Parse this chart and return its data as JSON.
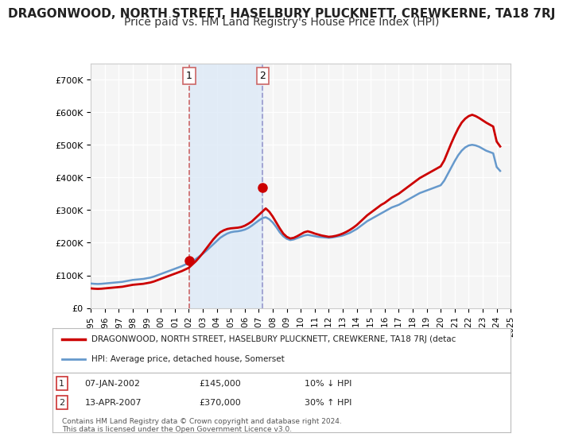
{
  "title": "DRAGONWOOD, NORTH STREET, HASELBURY PLUCKNETT, CREWKERNE, TA18 7RJ",
  "subtitle": "Price paid vs. HM Land Registry's House Price Index (HPI)",
  "title_fontsize": 11,
  "subtitle_fontsize": 10,
  "bg_color": "#ffffff",
  "plot_bg_color": "#f5f5f5",
  "grid_color": "#ffffff",
  "red_line_color": "#cc0000",
  "blue_line_color": "#6699cc",
  "marker1_color": "#cc0000",
  "marker2_color": "#cc0000",
  "vertical_band_color": "#dce9f7",
  "vertical_line1_color": "#cc6666",
  "vertical_line2_color": "#9999cc",
  "sale1_year": 2002.03,
  "sale2_year": 2007.28,
  "sale1_price": 145000,
  "sale2_price": 370000,
  "ylim_max": 750000,
  "legend_red_label": "DRAGONWOOD, NORTH STREET, HASELBURY PLUCKNETT, CREWKERNE, TA18 7RJ (detac",
  "legend_blue_label": "HPI: Average price, detached house, Somerset",
  "table_row1": "1    07-JAN-2002    £145,000    10% ↓ HPI",
  "table_row2": "2    13-APR-2007    £370,000    30% ↑ HPI",
  "footer": "Contains HM Land Registry data © Crown copyright and database right 2024.\nThis data is licensed under the Open Government Licence v3.0.",
  "hpi_years": [
    1995,
    1995.25,
    1995.5,
    1995.75,
    1996,
    1996.25,
    1996.5,
    1996.75,
    1997,
    1997.25,
    1997.5,
    1997.75,
    1998,
    1998.25,
    1998.5,
    1998.75,
    1999,
    1999.25,
    1999.5,
    1999.75,
    2000,
    2000.25,
    2000.5,
    2000.75,
    2001,
    2001.25,
    2001.5,
    2001.75,
    2002,
    2002.25,
    2002.5,
    2002.75,
    2003,
    2003.25,
    2003.5,
    2003.75,
    2004,
    2004.25,
    2004.5,
    2004.75,
    2005,
    2005.25,
    2005.5,
    2005.75,
    2006,
    2006.25,
    2006.5,
    2006.75,
    2007,
    2007.25,
    2007.5,
    2007.75,
    2008,
    2008.25,
    2008.5,
    2008.75,
    2009,
    2009.25,
    2009.5,
    2009.75,
    2010,
    2010.25,
    2010.5,
    2010.75,
    2011,
    2011.25,
    2011.5,
    2011.75,
    2012,
    2012.25,
    2012.5,
    2012.75,
    2013,
    2013.25,
    2013.5,
    2013.75,
    2014,
    2014.25,
    2014.5,
    2014.75,
    2015,
    2015.25,
    2015.5,
    2015.75,
    2016,
    2016.25,
    2016.5,
    2016.75,
    2017,
    2017.25,
    2017.5,
    2017.75,
    2018,
    2018.25,
    2018.5,
    2018.75,
    2019,
    2019.25,
    2019.5,
    2019.75,
    2020,
    2020.25,
    2020.5,
    2020.75,
    2021,
    2021.25,
    2021.5,
    2021.75,
    2022,
    2022.25,
    2022.5,
    2022.75,
    2023,
    2023.25,
    2023.5,
    2023.75,
    2024,
    2024.25
  ],
  "hpi_values": [
    75000,
    74000,
    73500,
    74000,
    75000,
    76000,
    77000,
    78000,
    79000,
    80000,
    82000,
    84000,
    86000,
    87000,
    88000,
    89000,
    91000,
    93000,
    96000,
    100000,
    104000,
    108000,
    112000,
    116000,
    120000,
    124000,
    128000,
    133000,
    138000,
    143000,
    150000,
    158000,
    166000,
    175000,
    185000,
    195000,
    205000,
    215000,
    222000,
    228000,
    232000,
    234000,
    235000,
    237000,
    240000,
    245000,
    252000,
    260000,
    268000,
    275000,
    278000,
    272000,
    262000,
    248000,
    232000,
    220000,
    212000,
    208000,
    210000,
    214000,
    218000,
    222000,
    224000,
    222000,
    220000,
    218000,
    217000,
    216000,
    215000,
    216000,
    218000,
    220000,
    222000,
    226000,
    230000,
    236000,
    242000,
    250000,
    258000,
    266000,
    272000,
    278000,
    284000,
    290000,
    296000,
    302000,
    308000,
    312000,
    316000,
    322000,
    328000,
    334000,
    340000,
    346000,
    352000,
    356000,
    360000,
    364000,
    368000,
    372000,
    376000,
    390000,
    410000,
    430000,
    450000,
    468000,
    482000,
    492000,
    498000,
    500000,
    498000,
    494000,
    488000,
    482000,
    478000,
    474000,
    432000,
    420000
  ],
  "red_years": [
    1995,
    1995.25,
    1995.5,
    1995.75,
    1996,
    1996.25,
    1996.5,
    1996.75,
    1997,
    1997.25,
    1997.5,
    1997.75,
    1998,
    1998.25,
    1998.5,
    1998.75,
    1999,
    1999.25,
    1999.5,
    1999.75,
    2000,
    2000.25,
    2000.5,
    2000.75,
    2001,
    2001.25,
    2001.5,
    2001.75,
    2002,
    2002.25,
    2002.5,
    2002.75,
    2003,
    2003.25,
    2003.5,
    2003.75,
    2004,
    2004.25,
    2004.5,
    2004.75,
    2005,
    2005.25,
    2005.5,
    2005.75,
    2006,
    2006.25,
    2006.5,
    2006.75,
    2007,
    2007.25,
    2007.5,
    2007.75,
    2008,
    2008.25,
    2008.5,
    2008.75,
    2009,
    2009.25,
    2009.5,
    2009.75,
    2010,
    2010.25,
    2010.5,
    2010.75,
    2011,
    2011.25,
    2011.5,
    2011.75,
    2012,
    2012.25,
    2012.5,
    2012.75,
    2013,
    2013.25,
    2013.5,
    2013.75,
    2014,
    2014.25,
    2014.5,
    2014.75,
    2015,
    2015.25,
    2015.5,
    2015.75,
    2016,
    2016.25,
    2016.5,
    2016.75,
    2017,
    2017.25,
    2017.5,
    2017.75,
    2018,
    2018.25,
    2018.5,
    2018.75,
    2019,
    2019.25,
    2019.5,
    2019.75,
    2020,
    2020.25,
    2020.5,
    2020.75,
    2021,
    2021.25,
    2021.5,
    2021.75,
    2022,
    2022.25,
    2022.5,
    2022.75,
    2023,
    2023.25,
    2023.5,
    2023.75,
    2024,
    2024.25
  ],
  "red_values": [
    60000,
    59000,
    58500,
    59000,
    60000,
    61000,
    62000,
    63000,
    64000,
    65000,
    67000,
    69000,
    71000,
    72000,
    73000,
    74000,
    76000,
    78000,
    81000,
    85000,
    89000,
    93000,
    97000,
    101000,
    105000,
    109000,
    113000,
    118000,
    123000,
    133000,
    143000,
    155000,
    168000,
    182000,
    196000,
    210000,
    222000,
    232000,
    238000,
    242000,
    244000,
    245000,
    246000,
    248000,
    252000,
    258000,
    265000,
    275000,
    285000,
    295000,
    305000,
    295000,
    280000,
    262000,
    244000,
    228000,
    218000,
    213000,
    215000,
    220000,
    226000,
    232000,
    235000,
    232000,
    228000,
    225000,
    222000,
    220000,
    218000,
    219000,
    221000,
    224000,
    228000,
    233000,
    239000,
    246000,
    254000,
    264000,
    274000,
    284000,
    292000,
    300000,
    308000,
    316000,
    322000,
    330000,
    338000,
    344000,
    350000,
    358000,
    366000,
    374000,
    382000,
    390000,
    398000,
    404000,
    410000,
    416000,
    422000,
    428000,
    434000,
    452000,
    478000,
    504000,
    528000,
    550000,
    568000,
    580000,
    588000,
    592000,
    588000,
    582000,
    575000,
    568000,
    562000,
    556000,
    510000,
    495000
  ],
  "x_tick_years": [
    1995,
    1996,
    1997,
    1998,
    1999,
    2000,
    2001,
    2002,
    2003,
    2004,
    2005,
    2006,
    2007,
    2008,
    2009,
    2010,
    2011,
    2012,
    2013,
    2014,
    2015,
    2016,
    2017,
    2018,
    2019,
    2020,
    2021,
    2022,
    2023,
    2024,
    2025
  ]
}
